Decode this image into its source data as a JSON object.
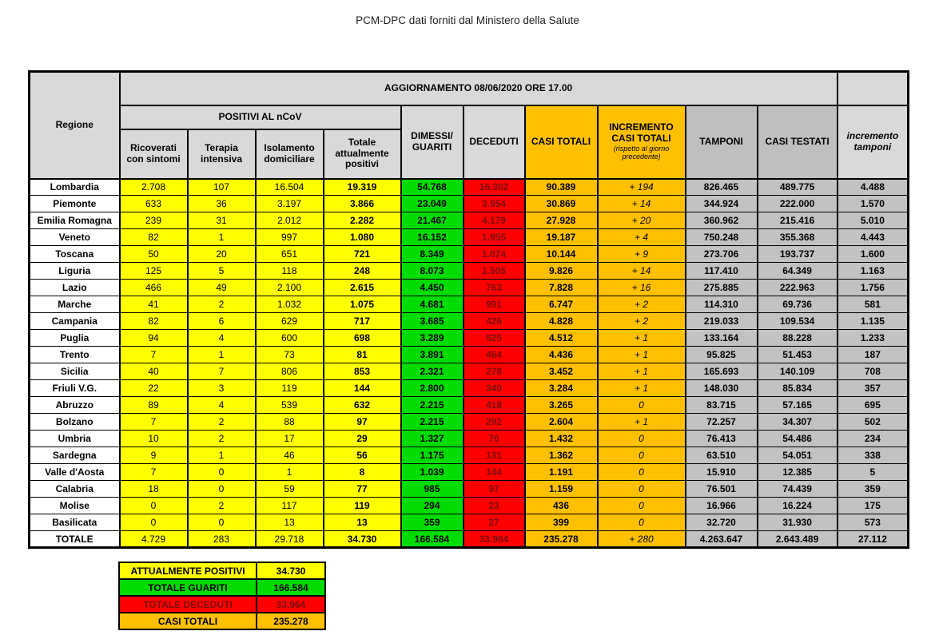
{
  "page_title": "PCM-DPC dati forniti dal Ministero della Salute",
  "colors": {
    "yellow": "#FFFF00",
    "green": "#00DB00",
    "red": "#FF0000",
    "dark_red_text": "#7B0C0C",
    "orange": "#FFC000",
    "grey_header_light": "#D9D9D9",
    "grey_header_dark": "#BFBFBF",
    "grey_cell": "#C2C2C2"
  },
  "table": {
    "update_banner": "AGGIORNAMENTO 08/06/2020 ORE 17.00",
    "region_header": "Regione",
    "positivi_group_header": "POSITIVI AL nCoV",
    "col_headers": {
      "ricoverati": "Ricoverati con sintomi",
      "terapia": "Terapia intensiva",
      "isolamento": "Isolamento domiciliare",
      "totale_positivi": "Totale attualmente positivi",
      "dimessi": "DIMESSI/ GUARITI",
      "deceduti": "DECEDUTI",
      "casi_totali": "CASI TOTALI",
      "incremento_title": "INCREMENTO CASI  TOTALI",
      "incremento_note": "(rispetto al giorno precedente)",
      "tamponi": "TAMPONI",
      "casi_testati": "CASI TESTATI",
      "incremento_tamponi": "incremento tamponi"
    },
    "rows": [
      [
        "Lombardia",
        "2.708",
        "107",
        "16.504",
        "19.319",
        "54.768",
        "16.302",
        "90.389",
        "+ 194",
        "826.465",
        "489.775",
        "4.488"
      ],
      [
        "Piemonte",
        "633",
        "36",
        "3.197",
        "3.866",
        "23.049",
        "3.954",
        "30.869",
        "+ 14",
        "344.924",
        "222.000",
        "1.570"
      ],
      [
        "Emilia Romagna",
        "239",
        "31",
        "2.012",
        "2.282",
        "21.467",
        "4.179",
        "27.928",
        "+ 20",
        "360.962",
        "215.416",
        "5.010"
      ],
      [
        "Veneto",
        "82",
        "1",
        "997",
        "1.080",
        "16.152",
        "1.955",
        "19.187",
        "+ 4",
        "750.248",
        "355.368",
        "4.443"
      ],
      [
        "Toscana",
        "50",
        "20",
        "651",
        "721",
        "8.349",
        "1.074",
        "10.144",
        "+ 9",
        "273.706",
        "193.737",
        "1.600"
      ],
      [
        "Liguria",
        "125",
        "5",
        "118",
        "248",
        "8.073",
        "1.505",
        "9.826",
        "+ 14",
        "117.410",
        "64.349",
        "1.163"
      ],
      [
        "Lazio",
        "466",
        "49",
        "2.100",
        "2.615",
        "4.450",
        "763",
        "7.828",
        "+ 16",
        "275.885",
        "222.963",
        "1.756"
      ],
      [
        "Marche",
        "41",
        "2",
        "1.032",
        "1.075",
        "4.681",
        "991",
        "6.747",
        "+ 2",
        "114.310",
        "69.736",
        "581"
      ],
      [
        "Campania",
        "82",
        "6",
        "629",
        "717",
        "3.685",
        "426",
        "4.828",
        "+ 2",
        "219.033",
        "109.534",
        "1.135"
      ],
      [
        "Puglia",
        "94",
        "4",
        "600",
        "698",
        "3.289",
        "525",
        "4.512",
        "+ 1",
        "133.164",
        "88.228",
        "1.233"
      ],
      [
        "Trento",
        "7",
        "1",
        "73",
        "81",
        "3.891",
        "464",
        "4.436",
        "+ 1",
        "95.825",
        "51.453",
        "187"
      ],
      [
        "Sicilia",
        "40",
        "7",
        "806",
        "853",
        "2.321",
        "278",
        "3.452",
        "+ 1",
        "165.693",
        "140.109",
        "708"
      ],
      [
        "Friuli V.G.",
        "22",
        "3",
        "119",
        "144",
        "2.800",
        "340",
        "3.284",
        "+ 1",
        "148.030",
        "85.834",
        "357"
      ],
      [
        "Abruzzo",
        "89",
        "4",
        "539",
        "632",
        "2.215",
        "418",
        "3.265",
        "0",
        "83.715",
        "57.165",
        "695"
      ],
      [
        "Bolzano",
        "7",
        "2",
        "88",
        "97",
        "2.215",
        "292",
        "2.604",
        "+ 1",
        "72.257",
        "34.307",
        "502"
      ],
      [
        "Umbria",
        "10",
        "2",
        "17",
        "29",
        "1.327",
        "76",
        "1.432",
        "0",
        "76.413",
        "54.486",
        "234"
      ],
      [
        "Sardegna",
        "9",
        "1",
        "46",
        "56",
        "1.175",
        "131",
        "1.362",
        "0",
        "63.510",
        "54.051",
        "338"
      ],
      [
        "Valle d'Aosta",
        "7",
        "0",
        "1",
        "8",
        "1.039",
        "144",
        "1.191",
        "0",
        "15.910",
        "12.385",
        "5"
      ],
      [
        "Calabria",
        "18",
        "0",
        "59",
        "77",
        "985",
        "97",
        "1.159",
        "0",
        "76.501",
        "74.439",
        "359"
      ],
      [
        "Molise",
        "0",
        "2",
        "117",
        "119",
        "294",
        "23",
        "436",
        "0",
        "16.966",
        "16.224",
        "175"
      ],
      [
        "Basilicata",
        "0",
        "0",
        "13",
        "13",
        "359",
        "27",
        "399",
        "0",
        "32.720",
        "31.930",
        "573"
      ]
    ],
    "total_row": [
      "TOTALE",
      "4.729",
      "283",
      "29.718",
      "34.730",
      "166.584",
      "33.964",
      "235.278",
      "+ 280",
      "4.263.647",
      "2.643.489",
      "27.112"
    ]
  },
  "summary_box": {
    "rows": [
      {
        "label": "ATTUALMENTE POSITIVI",
        "value": "34.730",
        "bg": "#FFFF00",
        "fg": "#000000"
      },
      {
        "label": "TOTALE GUARITI",
        "value": "166.584",
        "bg": "#00DB00",
        "fg": "#000000"
      },
      {
        "label": "TOTALE DECEDUTI",
        "value": "33.964",
        "bg": "#FF0000",
        "fg": "#7B0C0C"
      },
      {
        "label": "CASI TOTALI",
        "value": "235.278",
        "bg": "#FFC000",
        "fg": "#000000"
      }
    ]
  }
}
